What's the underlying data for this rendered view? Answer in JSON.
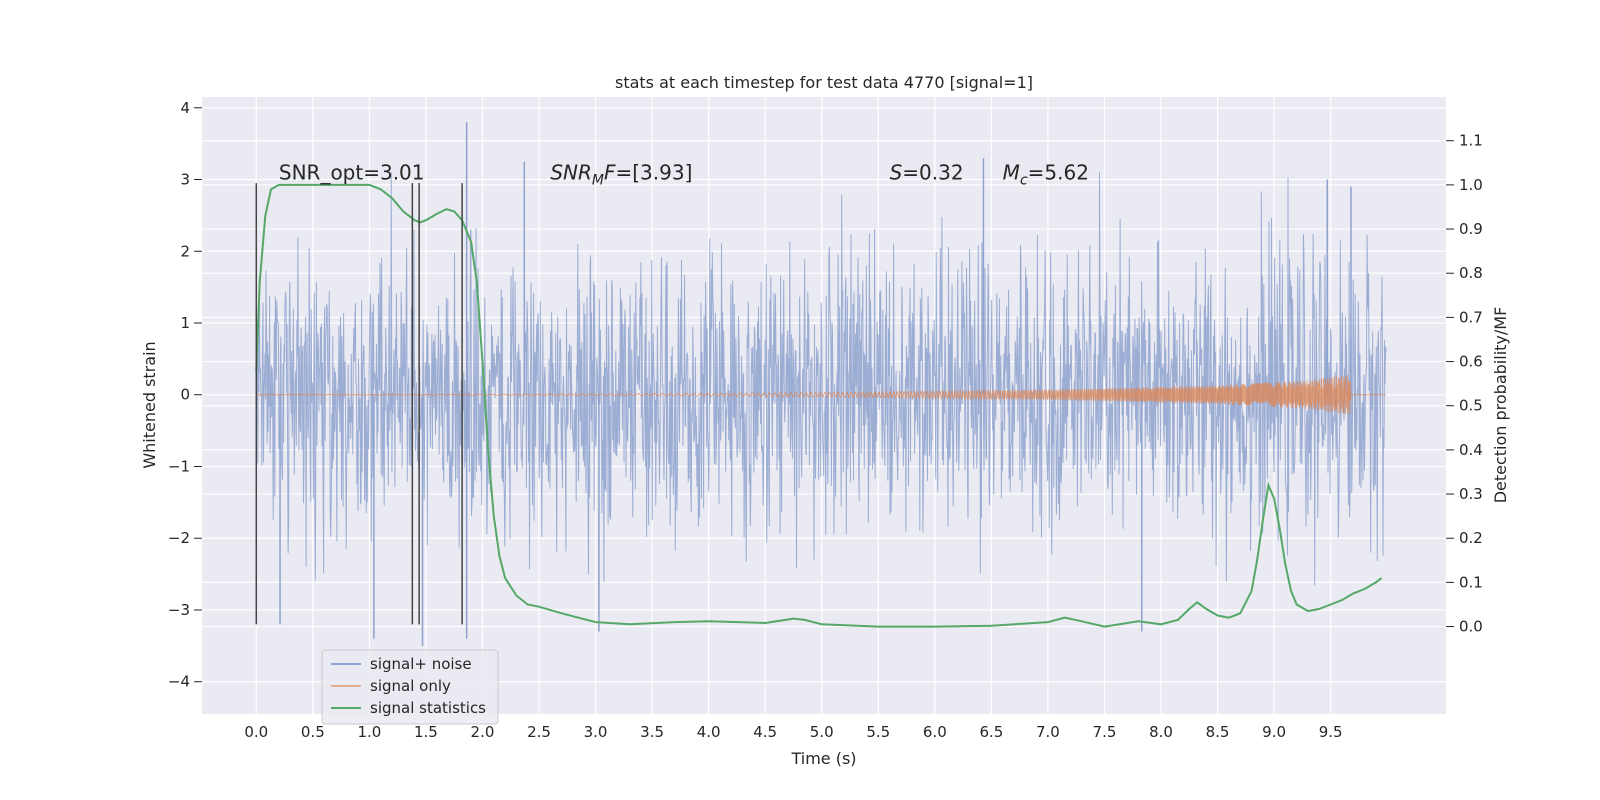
{
  "chart_data": {
    "type": "line",
    "title": "stats at each timestep for test data 4770 [signal=1]",
    "xlabel": "Time (s)",
    "ylabel": "Whitened strain",
    "ylabel_right": "Detection probability/MF",
    "xlim": [
      -0.48,
      10.52
    ],
    "ylim": [
      -4.45,
      4.15
    ],
    "ylim_right": [
      -0.198,
      1.199
    ],
    "x_ticks": [
      0.0,
      0.5,
      1.0,
      1.5,
      2.0,
      2.5,
      3.0,
      3.5,
      4.0,
      4.5,
      5.0,
      5.5,
      6.0,
      6.5,
      7.0,
      7.5,
      8.0,
      8.5,
      9.0,
      9.5
    ],
    "x_tick_labels": [
      "0.0",
      "0.5",
      "1.0",
      "1.5",
      "2.0",
      "2.5",
      "3.0",
      "3.5",
      "4.0",
      "4.5",
      "5.0",
      "5.5",
      "6.0",
      "6.5",
      "7.0",
      "7.5",
      "8.0",
      "8.5",
      "9.0",
      "9.5"
    ],
    "y_ticks": [
      -4,
      -3,
      -2,
      -1,
      0,
      1,
      2,
      3,
      4
    ],
    "y_tick_labels": [
      "−4",
      "−3",
      "−2",
      "−1",
      "0",
      "1",
      "2",
      "3",
      "4"
    ],
    "y_right_ticks": [
      0.0,
      0.1,
      0.2,
      0.3,
      0.4,
      0.5,
      0.6,
      0.7,
      0.8,
      0.9,
      1.0,
      1.1
    ],
    "y_right_tick_labels": [
      "0.0",
      "0.1",
      "0.2",
      "0.3",
      "0.4",
      "0.5",
      "0.6",
      "0.7",
      "0.8",
      "0.9",
      "1.0",
      "1.1"
    ],
    "grid": true,
    "legend_placement": "lower-left",
    "annotations": [
      {
        "parts": [
          {
            "t": "SNR_opt=3.01",
            "style": "normal"
          }
        ],
        "x": 0.2,
        "y": 3.0
      },
      {
        "parts": [
          {
            "t": "SNR",
            "style": "italic"
          },
          {
            "t": "M",
            "style": "italic-sub"
          },
          {
            "t": "F",
            "style": "italic"
          },
          {
            "t": "=[3.93]",
            "style": "normal"
          }
        ],
        "x": 2.6,
        "y": 3.0
      },
      {
        "parts": [
          {
            "t": "S",
            "style": "italic"
          },
          {
            "t": "=0.32",
            "style": "normal"
          }
        ],
        "x": 5.6,
        "y": 3.0
      },
      {
        "parts": [
          {
            "t": "M",
            "style": "italic"
          },
          {
            "t": "c",
            "style": "italic-sub"
          },
          {
            "t": "=5.62",
            "style": "normal"
          }
        ],
        "x": 6.6,
        "y": 3.0
      }
    ],
    "vertical_markers": {
      "x": [
        0.0,
        1.38,
        1.44,
        1.82
      ],
      "y_range": [
        -3.2,
        2.95
      ],
      "color": "#444444"
    },
    "series": [
      {
        "name": "signal+ noise",
        "color": "#8ea2cf",
        "axis": "left",
        "x_range": [
          0.0,
          9.99
        ],
        "spread_std": 0.95,
        "spikes": [
          {
            "x": 1.86,
            "y": 3.8
          },
          {
            "x": 1.86,
            "y": -3.4
          },
          {
            "x": 1.47,
            "y": -3.5
          },
          {
            "x": 1.04,
            "y": -3.4
          },
          {
            "x": 3.03,
            "y": -3.3
          },
          {
            "x": 7.83,
            "y": -3.3
          },
          {
            "x": 6.43,
            "y": 3.3
          },
          {
            "x": 9.47,
            "y": 3.0
          },
          {
            "x": 2.37,
            "y": 3.25
          },
          {
            "x": 0.21,
            "y": -3.2
          },
          {
            "x": 9.68,
            "y": 2.9
          }
        ]
      },
      {
        "name": "signal only",
        "color": "#dd8452",
        "axis": "left",
        "x_range": [
          0.0,
          9.99
        ],
        "envelope": [
          [
            0.0,
            0.0
          ],
          [
            3.0,
            0.01
          ],
          [
            5.0,
            0.03
          ],
          [
            7.0,
            0.07
          ],
          [
            8.5,
            0.13
          ],
          [
            9.3,
            0.2
          ],
          [
            9.6,
            0.27
          ],
          [
            9.67,
            0.29
          ],
          [
            9.68,
            0.0
          ],
          [
            9.99,
            0.0
          ]
        ]
      },
      {
        "name": "signal statistics",
        "color": "#55a868",
        "axis": "right",
        "x": [
          0.0,
          0.03,
          0.08,
          0.13,
          0.2,
          0.3,
          0.5,
          0.7,
          0.9,
          1.0,
          1.1,
          1.2,
          1.3,
          1.4,
          1.45,
          1.5,
          1.6,
          1.68,
          1.75,
          1.82,
          1.9,
          1.95,
          2.0,
          2.05,
          2.1,
          2.15,
          2.2,
          2.3,
          2.4,
          2.5,
          2.7,
          3.0,
          3.3,
          3.7,
          4.0,
          4.5,
          4.75,
          4.85,
          5.0,
          5.5,
          6.0,
          6.5,
          7.0,
          7.15,
          7.3,
          7.5,
          7.8,
          8.0,
          8.15,
          8.25,
          8.32,
          8.4,
          8.5,
          8.6,
          8.7,
          8.8,
          8.85,
          8.9,
          8.95,
          9.0,
          9.05,
          9.1,
          9.15,
          9.2,
          9.3,
          9.4,
          9.5,
          9.6,
          9.7,
          9.8,
          9.9,
          9.95
        ],
        "y": [
          0.58,
          0.78,
          0.93,
          0.99,
          1.0,
          1.0,
          1.0,
          1.0,
          1.0,
          1.0,
          0.99,
          0.97,
          0.94,
          0.92,
          0.915,
          0.92,
          0.935,
          0.945,
          0.94,
          0.92,
          0.87,
          0.78,
          0.6,
          0.4,
          0.25,
          0.16,
          0.11,
          0.07,
          0.05,
          0.045,
          0.03,
          0.01,
          0.005,
          0.01,
          0.012,
          0.008,
          0.018,
          0.015,
          0.005,
          0.0,
          0.0,
          0.002,
          0.01,
          0.02,
          0.012,
          0.0,
          0.012,
          0.005,
          0.015,
          0.04,
          0.055,
          0.04,
          0.025,
          0.02,
          0.03,
          0.08,
          0.15,
          0.24,
          0.32,
          0.29,
          0.22,
          0.14,
          0.08,
          0.05,
          0.035,
          0.04,
          0.05,
          0.06,
          0.075,
          0.085,
          0.1,
          0.11
        ]
      }
    ]
  }
}
